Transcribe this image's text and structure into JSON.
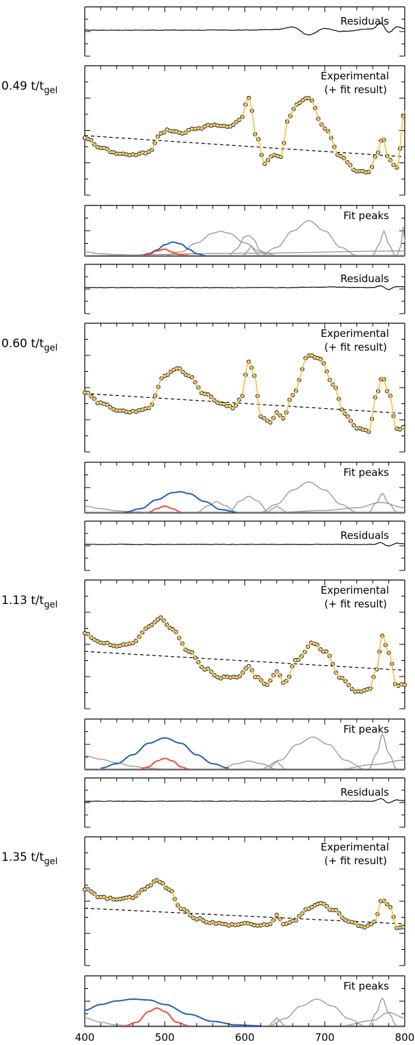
{
  "figure": {
    "x_ticks": [
      "400",
      "500",
      "600",
      "700",
      "800"
    ],
    "residuals_label": "Residuals",
    "experimental_label_line1": "Experimental",
    "experimental_label_line2": "(+ fit result)",
    "fit_peaks_label": "Fit peaks",
    "colors": {
      "data_points": "#000000",
      "fit_line": "#f5c34e",
      "baseline": "#000000",
      "peak_broad": "#1f5fb8",
      "peak_narrow": "#e8503a",
      "peak_other": "#999999",
      "axes": "#000000"
    }
  },
  "chart_data": [
    {
      "type": "line",
      "panel": "0.49 t/t_gel",
      "label": "0.49 t/t",
      "label_sub": "gel",
      "xlim": [
        400,
        800
      ],
      "experimental": {
        "x": [
          400,
          420,
          440,
          460,
          480,
          495,
          505,
          520,
          540,
          560,
          580,
          595,
          605,
          615,
          625,
          635,
          645,
          655,
          665,
          680,
          700,
          720,
          740,
          755,
          765,
          772,
          780,
          790,
          800
        ],
        "y": [
          0.5,
          0.38,
          0.32,
          0.3,
          0.33,
          0.55,
          0.58,
          0.55,
          0.6,
          0.64,
          0.62,
          0.7,
          0.95,
          0.5,
          0.2,
          0.3,
          0.28,
          0.72,
          0.88,
          0.95,
          0.6,
          0.28,
          0.12,
          0.1,
          0.3,
          0.5,
          0.25,
          0.15,
          0.8
        ]
      },
      "baseline": {
        "x": [
          400,
          800
        ],
        "y": [
          0.22,
          -0.18
        ]
      },
      "residuals": {
        "x": [
          400,
          600,
          640,
          660,
          680,
          700,
          720,
          760,
          770,
          780,
          790,
          800
        ],
        "y": [
          0,
          0,
          0.01,
          0.05,
          -0.08,
          0.03,
          -0.02,
          0.02,
          0.12,
          -0.04,
          0.06,
          0.02
        ]
      },
      "peaks": [
        {
          "kind": "narrow",
          "x": [
            470,
            480,
            490,
            500,
            510,
            520,
            530
          ],
          "y": [
            0,
            0.02,
            0.1,
            0.14,
            0.07,
            0.01,
            0
          ]
        },
        {
          "kind": "broad",
          "x": [
            470,
            480,
            490,
            500,
            510,
            520,
            530,
            540,
            550
          ],
          "y": [
            0,
            0.04,
            0.12,
            0.24,
            0.3,
            0.26,
            0.14,
            0.04,
            0
          ]
        },
        {
          "kind": "other",
          "x": [
            400,
            420,
            440,
            460,
            480,
            800
          ],
          "y": [
            0.08,
            0.04,
            0.02,
            0.01,
            0.0,
            0.0
          ]
        },
        {
          "kind": "other",
          "x": [
            500,
            520,
            540,
            560,
            570,
            580,
            600,
            620,
            640
          ],
          "y": [
            0,
            0.08,
            0.28,
            0.5,
            0.54,
            0.5,
            0.28,
            0.08,
            0
          ]
        },
        {
          "kind": "other",
          "x": [
            580,
            590,
            600,
            605,
            610,
            620,
            630
          ],
          "y": [
            0,
            0.15,
            0.42,
            0.45,
            0.38,
            0.1,
            0
          ]
        },
        {
          "kind": "other",
          "x": [
            598,
            604,
            608,
            612,
            618
          ],
          "y": [
            0,
            0.1,
            0.22,
            0.1,
            0
          ]
        },
        {
          "kind": "other",
          "x": [
            620,
            640,
            660,
            680,
            700,
            720,
            740
          ],
          "y": [
            0,
            0.18,
            0.55,
            0.78,
            0.55,
            0.18,
            0
          ]
        },
        {
          "kind": "other",
          "x": [
            760,
            768,
            774,
            780,
            788
          ],
          "y": [
            0,
            0.25,
            0.55,
            0.25,
            0
          ]
        },
        {
          "kind": "other",
          "x": [
            790,
            795,
            798,
            800
          ],
          "y": [
            0,
            0.2,
            0.65,
            0.3
          ]
        },
        {
          "kind": "other",
          "x": [
            400,
            600,
            800
          ],
          "y": [
            0.0,
            0.05,
            0.1
          ]
        }
      ]
    },
    {
      "type": "line",
      "panel": "0.60 t/t_gel",
      "label": "0.60 t/t",
      "label_sub": "gel",
      "xlim": [
        400,
        800
      ],
      "experimental": {
        "x": [
          400,
          420,
          440,
          460,
          480,
          500,
          515,
          530,
          550,
          570,
          585,
          595,
          605,
          612,
          620,
          632,
          640,
          648,
          660,
          680,
          695,
          710,
          725,
          740,
          755,
          765,
          772,
          780,
          790,
          800
        ],
        "y": [
          0.52,
          0.4,
          0.32,
          0.3,
          0.35,
          0.72,
          0.8,
          0.72,
          0.5,
          0.4,
          0.35,
          0.45,
          0.88,
          0.72,
          0.25,
          0.18,
          0.3,
          0.22,
          0.5,
          0.95,
          0.9,
          0.62,
          0.28,
          0.12,
          0.08,
          0.5,
          0.7,
          0.52,
          0.1,
          0.12
        ]
      },
      "baseline": {
        "x": [
          400,
          800
        ],
        "y": [
          0.2,
          -0.18
        ]
      },
      "residuals": {
        "x": [
          400,
          640,
          700,
          760,
          770,
          780,
          790,
          800
        ],
        "y": [
          0,
          0,
          0.01,
          0.0,
          0.03,
          -0.03,
          0.02,
          0.01
        ]
      },
      "peaks": [
        {
          "kind": "narrow",
          "x": [
            480,
            490,
            500,
            510,
            520
          ],
          "y": [
            0,
            0.08,
            0.14,
            0.08,
            0
          ]
        },
        {
          "kind": "broad",
          "x": [
            450,
            470,
            490,
            510,
            520,
            530,
            550,
            570,
            590
          ],
          "y": [
            0,
            0.08,
            0.28,
            0.44,
            0.46,
            0.42,
            0.24,
            0.06,
            0
          ]
        },
        {
          "kind": "other",
          "x": [
            400,
            420,
            440,
            460,
            480
          ],
          "y": [
            0.14,
            0.08,
            0.03,
            0.01,
            0
          ]
        },
        {
          "kind": "other",
          "x": [
            540,
            555,
            565,
            575,
            590
          ],
          "y": [
            0,
            0.15,
            0.24,
            0.15,
            0
          ]
        },
        {
          "kind": "other",
          "x": [
            580,
            595,
            605,
            615,
            630
          ],
          "y": [
            0,
            0.26,
            0.36,
            0.26,
            0
          ]
        },
        {
          "kind": "other",
          "x": [
            628,
            635,
            640,
            645,
            652
          ],
          "y": [
            0,
            0.08,
            0.14,
            0.08,
            0
          ]
        },
        {
          "kind": "other",
          "x": [
            620,
            640,
            660,
            680,
            700,
            720,
            740
          ],
          "y": [
            0,
            0.18,
            0.5,
            0.68,
            0.5,
            0.18,
            0
          ]
        },
        {
          "kind": "other",
          "x": [
            640,
            700,
            740,
            770,
            800
          ],
          "y": [
            0,
            0.04,
            0.1,
            0.22,
            0.1
          ]
        },
        {
          "kind": "other",
          "x": [
            755,
            764,
            772,
            780,
            790
          ],
          "y": [
            0,
            0.2,
            0.42,
            0.2,
            0
          ]
        },
        {
          "kind": "other",
          "x": [
            400,
            800
          ],
          "y": [
            0.0,
            0.0
          ]
        }
      ]
    },
    {
      "type": "line",
      "panel": "1.13 t/t_gel",
      "label": "1.13 t/t",
      "label_sub": "gel",
      "xlim": [
        400,
        800
      ],
      "experimental": {
        "x": [
          400,
          420,
          440,
          460,
          480,
          495,
          510,
          530,
          550,
          570,
          590,
          605,
          615,
          628,
          640,
          650,
          665,
          685,
          700,
          720,
          740,
          755,
          765,
          772,
          780,
          790,
          800
        ],
        "y": [
          0.7,
          0.6,
          0.56,
          0.6,
          0.78,
          0.88,
          0.74,
          0.5,
          0.3,
          0.2,
          0.2,
          0.32,
          0.2,
          0.12,
          0.26,
          0.14,
          0.4,
          0.6,
          0.5,
          0.2,
          0.04,
          0.06,
          0.3,
          0.68,
          0.48,
          0.1,
          0.12
        ]
      },
      "baseline": {
        "x": [
          400,
          800
        ],
        "y": [
          0.18,
          -0.18
        ]
      },
      "residuals": {
        "x": [
          400,
          700,
          760,
          770,
          780,
          790,
          800
        ],
        "y": [
          0,
          0,
          0.0,
          0.03,
          -0.03,
          0.02,
          0.01
        ]
      },
      "peaks": [
        {
          "kind": "narrow",
          "x": [
            470,
            480,
            490,
            500,
            510,
            520,
            530
          ],
          "y": [
            0,
            0.05,
            0.18,
            0.24,
            0.18,
            0.05,
            0
          ]
        },
        {
          "kind": "broad",
          "x": [
            420,
            440,
            460,
            480,
            500,
            520,
            540,
            560,
            580
          ],
          "y": [
            0.02,
            0.12,
            0.32,
            0.58,
            0.7,
            0.58,
            0.32,
            0.12,
            0.02
          ]
        },
        {
          "kind": "other",
          "x": [
            400,
            420,
            440,
            460,
            480,
            500
          ],
          "y": [
            0.3,
            0.22,
            0.14,
            0.06,
            0.02,
            0
          ]
        },
        {
          "kind": "other",
          "x": [
            570,
            590,
            605,
            620,
            640
          ],
          "y": [
            0,
            0.12,
            0.18,
            0.12,
            0
          ]
        },
        {
          "kind": "other",
          "x": [
            630,
            636,
            640,
            644,
            650
          ],
          "y": [
            0,
            0.1,
            0.18,
            0.1,
            0
          ]
        },
        {
          "kind": "other",
          "x": [
            620,
            645,
            665,
            685,
            705,
            725,
            750
          ],
          "y": [
            0,
            0.2,
            0.55,
            0.72,
            0.55,
            0.2,
            0
          ]
        },
        {
          "kind": "other",
          "x": [
            755,
            765,
            772,
            780,
            790
          ],
          "y": [
            0,
            0.35,
            0.78,
            0.35,
            0
          ]
        },
        {
          "kind": "other",
          "x": [
            720,
            760,
            800
          ],
          "y": [
            0,
            0.1,
            0.2
          ]
        },
        {
          "kind": "other",
          "x": [
            400,
            800
          ],
          "y": [
            0.0,
            0.0
          ]
        }
      ]
    },
    {
      "type": "line",
      "panel": "1.35 t/t_gel",
      "label": "1.35 t/t",
      "label_sub": "gel",
      "xlim": [
        400,
        800
      ],
      "experimental": {
        "x": [
          400,
          420,
          440,
          460,
          475,
          490,
          505,
          520,
          540,
          560,
          580,
          600,
          620,
          632,
          640,
          648,
          660,
          680,
          695,
          710,
          730,
          750,
          762,
          772,
          782,
          790,
          800
        ],
        "y": [
          0.72,
          0.62,
          0.6,
          0.62,
          0.72,
          0.82,
          0.72,
          0.5,
          0.38,
          0.33,
          0.31,
          0.32,
          0.3,
          0.32,
          0.42,
          0.32,
          0.35,
          0.5,
          0.55,
          0.48,
          0.35,
          0.28,
          0.34,
          0.6,
          0.5,
          0.28,
          0.28
        ]
      },
      "baseline": {
        "x": [
          400,
          800
        ],
        "y": [
          0.18,
          -0.12
        ]
      },
      "residuals": {
        "x": [
          400,
          720,
          760,
          770,
          780,
          790,
          800
        ],
        "y": [
          0,
          0,
          0.0,
          0.04,
          -0.03,
          0.02,
          0.01
        ]
      },
      "peaks": [
        {
          "kind": "narrow",
          "x": [
            450,
            465,
            480,
            490,
            500,
            515,
            530
          ],
          "y": [
            0,
            0.08,
            0.32,
            0.4,
            0.32,
            0.08,
            0
          ]
        },
        {
          "kind": "broad",
          "x": [
            400,
            420,
            440,
            460,
            480,
            500,
            530,
            560,
            590,
            620
          ],
          "y": [
            0.35,
            0.48,
            0.56,
            0.6,
            0.58,
            0.48,
            0.26,
            0.1,
            0.02,
            0
          ]
        },
        {
          "kind": "other",
          "x": [
            400,
            420,
            440,
            460
          ],
          "y": [
            0.18,
            0.08,
            0.02,
            0
          ]
        },
        {
          "kind": "other",
          "x": [
            630,
            636,
            640,
            644,
            650
          ],
          "y": [
            0,
            0.1,
            0.18,
            0.1,
            0
          ]
        },
        {
          "kind": "other",
          "x": [
            630,
            650,
            670,
            690,
            710,
            730,
            750
          ],
          "y": [
            0,
            0.16,
            0.44,
            0.6,
            0.44,
            0.16,
            0
          ]
        },
        {
          "kind": "other",
          "x": [
            755,
            764,
            772,
            780,
            790
          ],
          "y": [
            0,
            0.28,
            0.62,
            0.28,
            0
          ]
        },
        {
          "kind": "other",
          "x": [
            720,
            760,
            780,
            800
          ],
          "y": [
            0,
            0.12,
            0.3,
            0.18
          ]
        },
        {
          "kind": "other",
          "x": [
            400,
            800
          ],
          "y": [
            0.0,
            0.0
          ]
        }
      ]
    }
  ]
}
